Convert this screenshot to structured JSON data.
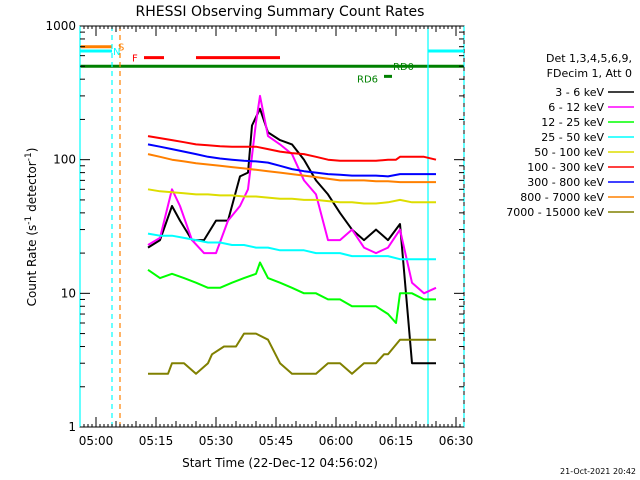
{
  "chart_data": {
    "type": "line",
    "title": "RHESSI Observing Summary Count Rates",
    "xlabel": "Start Time (22-Dec-12 04:56:02)",
    "ylabel_main": "Count Rate (s",
    "ylabel_exp1": "-1",
    "ylabel_mid": " detector",
    "ylabel_exp2": "-1",
    "ylabel_end": ")",
    "yscale": "log",
    "ylim": [
      1,
      1000
    ],
    "xlim_minutes": [
      0,
      96
    ],
    "x_tick_labels": [
      "05:00",
      "05:15",
      "05:30",
      "05:45",
      "06:00",
      "06:15",
      "06:30"
    ],
    "y_tick_labels": [
      "1",
      "10",
      "100",
      "1000"
    ],
    "legend_header": [
      "Det 1,3,4,5,6,9,",
      "FDecim 1, Att 0"
    ],
    "legend": [
      {
        "label": "3 - 6 keV",
        "color": "#000000"
      },
      {
        "label": "6 - 12 keV",
        "color": "#ff00ff"
      },
      {
        "label": "12 - 25 keV",
        "color": "#00ff00"
      },
      {
        "label": "25 - 50 keV",
        "color": "#00ffff"
      },
      {
        "label": "50 - 100 keV",
        "color": "#dddd00"
      },
      {
        "label": "100 - 300 keV",
        "color": "#ff0000"
      },
      {
        "label": "300 - 800 keV",
        "color": "#0000ff"
      },
      {
        "label": "800 - 7000 keV",
        "color": "#ff8000"
      },
      {
        "label": "7000 - 15000 keV",
        "color": "#808000"
      }
    ],
    "series": [
      {
        "name": "3 - 6 keV",
        "color": "#000000",
        "x": [
          17,
          20,
          23,
          25,
          28,
          31,
          34,
          37,
          40,
          42,
          43,
          45,
          47,
          50,
          53,
          56,
          59,
          62,
          65,
          68,
          71,
          74,
          77,
          80,
          83,
          86,
          89
        ],
        "y": [
          22,
          25,
          45,
          35,
          25,
          25,
          35,
          35,
          75,
          80,
          180,
          240,
          160,
          140,
          130,
          100,
          70,
          55,
          40,
          30,
          25,
          30,
          25,
          33,
          3,
          3,
          3
        ]
      },
      {
        "name": "6 - 12 keV",
        "color": "#ff00ff",
        "x": [
          17,
          20,
          23,
          25,
          28,
          31,
          34,
          37,
          40,
          42,
          44,
          45,
          47,
          50,
          53,
          56,
          59,
          62,
          65,
          68,
          71,
          74,
          77,
          80,
          83,
          86,
          89
        ],
        "y": [
          23,
          26,
          60,
          45,
          25,
          20,
          20,
          35,
          45,
          60,
          190,
          300,
          150,
          130,
          110,
          70,
          55,
          25,
          25,
          30,
          22,
          20,
          22,
          30,
          12,
          10,
          11
        ]
      },
      {
        "name": "12 - 25 keV",
        "color": "#00ff00",
        "x": [
          17,
          20,
          23,
          26,
          29,
          32,
          35,
          38,
          41,
          44,
          45,
          47,
          50,
          53,
          56,
          59,
          62,
          65,
          68,
          71,
          74,
          77,
          79,
          80,
          83,
          86,
          89
        ],
        "y": [
          15,
          13,
          14,
          13,
          12,
          11,
          11,
          12,
          13,
          14,
          17,
          13,
          12,
          11,
          10,
          10,
          9,
          9,
          8,
          8,
          8,
          7,
          6,
          10,
          10,
          9,
          9
        ]
      },
      {
        "name": "25 - 50 keV",
        "color": "#00ffff",
        "x": [
          17,
          20,
          23,
          26,
          29,
          32,
          35,
          38,
          41,
          44,
          47,
          50,
          53,
          56,
          59,
          62,
          65,
          68,
          71,
          74,
          77,
          80,
          83,
          86,
          89
        ],
        "y": [
          28,
          27,
          27,
          26,
          25,
          24,
          24,
          23,
          23,
          22,
          22,
          21,
          21,
          21,
          20,
          20,
          20,
          19,
          19,
          19,
          19,
          18,
          18,
          18,
          18
        ]
      },
      {
        "name": "50 - 100 keV",
        "color": "#dddd00",
        "x": [
          17,
          20,
          23,
          26,
          29,
          32,
          35,
          38,
          41,
          44,
          47,
          50,
          53,
          56,
          59,
          62,
          65,
          68,
          71,
          74,
          77,
          80,
          83,
          86,
          89
        ],
        "y": [
          60,
          58,
          57,
          56,
          55,
          55,
          54,
          54,
          53,
          53,
          52,
          51,
          51,
          50,
          50,
          49,
          48,
          48,
          47,
          47,
          48,
          50,
          48,
          48,
          48
        ]
      },
      {
        "name": "100 - 300 keV",
        "color": "#ff0000",
        "x": [
          17,
          20,
          23,
          26,
          29,
          32,
          35,
          38,
          41,
          44,
          47,
          50,
          53,
          56,
          59,
          62,
          65,
          68,
          71,
          74,
          77,
          79,
          80,
          83,
          86,
          89
        ],
        "y": [
          150,
          145,
          140,
          135,
          130,
          128,
          126,
          125,
          125,
          125,
          120,
          115,
          112,
          110,
          105,
          100,
          98,
          98,
          98,
          98,
          100,
          100,
          105,
          105,
          105,
          100
        ]
      },
      {
        "name": "300 - 800 keV",
        "color": "#0000ff",
        "x": [
          17,
          20,
          23,
          26,
          29,
          32,
          35,
          38,
          41,
          44,
          47,
          50,
          53,
          56,
          59,
          62,
          65,
          68,
          71,
          74,
          77,
          80,
          83,
          86,
          89
        ],
        "y": [
          130,
          125,
          120,
          115,
          110,
          105,
          102,
          100,
          98,
          97,
          95,
          90,
          85,
          82,
          80,
          78,
          77,
          76,
          76,
          76,
          75,
          78,
          78,
          78,
          78
        ]
      },
      {
        "name": "800 - 7000 keV",
        "color": "#ff8000",
        "x": [
          17,
          20,
          23,
          26,
          29,
          32,
          35,
          38,
          41,
          44,
          47,
          50,
          53,
          56,
          59,
          62,
          65,
          68,
          71,
          74,
          77,
          80,
          83,
          86,
          89
        ],
        "y": [
          110,
          105,
          100,
          97,
          94,
          92,
          90,
          88,
          86,
          84,
          82,
          80,
          78,
          76,
          74,
          72,
          70,
          70,
          70,
          69,
          69,
          68,
          68,
          68,
          68
        ]
      },
      {
        "name": "7000 - 15000 keV",
        "color": "#808000",
        "x": [
          17,
          20,
          22,
          23,
          26,
          29,
          32,
          33,
          36,
          39,
          41,
          44,
          47,
          50,
          53,
          56,
          59,
          62,
          65,
          68,
          71,
          74,
          76,
          77,
          80,
          83,
          86,
          89
        ],
        "y": [
          2.5,
          2.5,
          2.5,
          3,
          3,
          2.5,
          3,
          3.5,
          4,
          4,
          5,
          5,
          4.5,
          3,
          2.5,
          2.5,
          2.5,
          3,
          3,
          2.5,
          3,
          3,
          3.5,
          3.5,
          4.5,
          4.5,
          4.5,
          4.5
        ]
      }
    ],
    "markers": {
      "S": {
        "label": "S",
        "color": "#ff8000",
        "segments_minutes": [
          [
            0,
            8
          ]
        ],
        "level": 700
      },
      "N": {
        "label": "N",
        "color": "#00ffff",
        "segments_minutes": [
          [
            0,
            8
          ],
          [
            87,
            96
          ]
        ],
        "level": 650
      },
      "F": {
        "label": "F",
        "color": "#ff0000",
        "segments_minutes": [
          [
            16,
            21
          ],
          [
            29,
            50
          ]
        ],
        "level": 580
      },
      "SAA": {
        "color": "#008000",
        "segments_minutes": [
          [
            0,
            96
          ]
        ],
        "level": 500
      },
      "RD0": {
        "label": "RD0",
        "color": "#008000"
      },
      "RD6": {
        "label": "RD6",
        "color": "#008000",
        "segments_minutes": [
          [
            76,
            78
          ]
        ],
        "level": 420
      }
    },
    "vlines": [
      {
        "color": "#00ffff",
        "style": "solid",
        "x": 0
      },
      {
        "color": "#00ffff",
        "style": "dashed",
        "x": 8
      },
      {
        "color": "#ff8000",
        "style": "dashed",
        "x": 10
      },
      {
        "color": "#00ffff",
        "style": "solid",
        "x": 87
      },
      {
        "color": "#00ffff",
        "style": "dashed",
        "x": 96
      }
    ],
    "footer_date": "21-Oct-2021 20:42"
  }
}
